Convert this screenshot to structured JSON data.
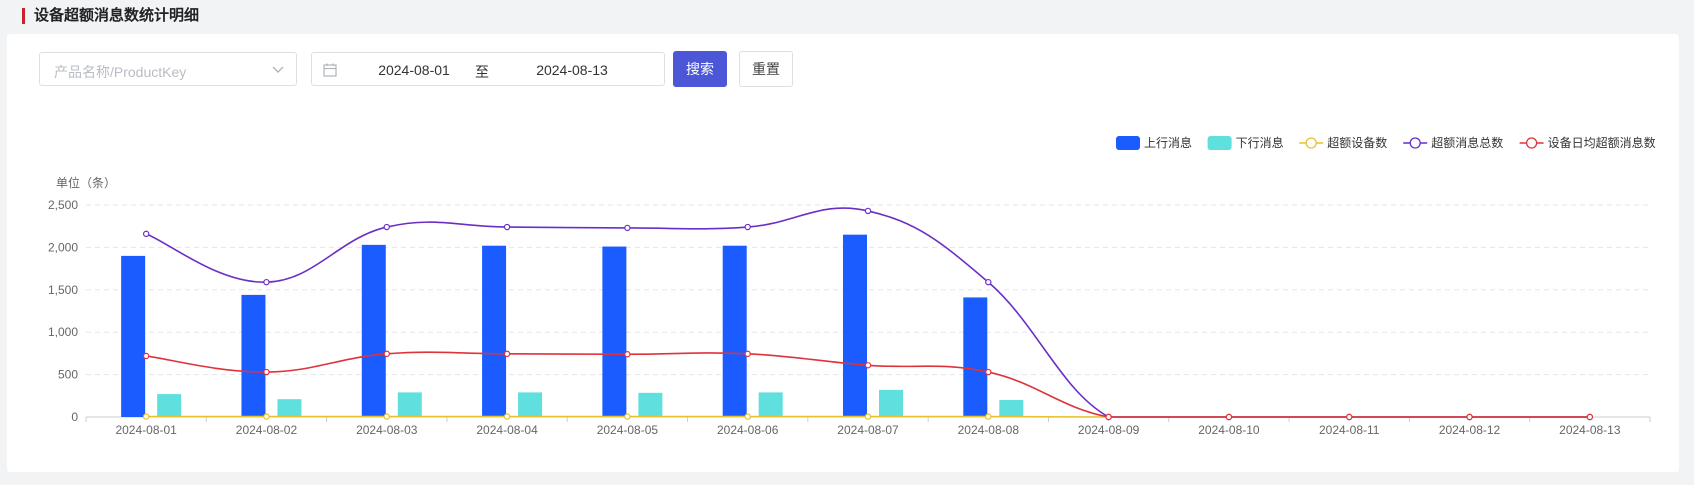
{
  "page": {
    "title": "设备超额消息数统计明细"
  },
  "filters": {
    "product_placeholder": "产品名称/ProductKey",
    "date_start": "2024-08-01",
    "date_separator": "至",
    "date_end": "2024-08-13",
    "search_label": "搜索",
    "reset_label": "重置"
  },
  "colors": {
    "accent_bar": "#c8232c",
    "search_button": "#4b57d6"
  },
  "chart_data": {
    "type": "bar",
    "unit_label": "单位（条）",
    "categories": [
      "2024-08-01",
      "2024-08-02",
      "2024-08-03",
      "2024-08-04",
      "2024-08-05",
      "2024-08-06",
      "2024-08-07",
      "2024-08-08",
      "2024-08-09",
      "2024-08-10",
      "2024-08-11",
      "2024-08-12",
      "2024-08-13"
    ],
    "ylim": [
      0,
      2500
    ],
    "yticks": [
      0,
      500,
      1000,
      1500,
      2000,
      2500
    ],
    "ytick_labels": [
      "0",
      "500",
      "1,000",
      "1,500",
      "2,000",
      "2,500"
    ],
    "grid": true,
    "legend_position": "top-right",
    "series": [
      {
        "name": "上行消息",
        "kind": "bar",
        "color": "#1a5cff",
        "values": [
          1900,
          1440,
          2030,
          2020,
          2010,
          2020,
          2150,
          1410,
          0,
          0,
          0,
          0,
          0
        ]
      },
      {
        "name": "下行消息",
        "kind": "bar",
        "color": "#5fdfde",
        "values": [
          270,
          210,
          290,
          290,
          285,
          290,
          320,
          200,
          0,
          0,
          0,
          0,
          0
        ]
      },
      {
        "name": "超额设备数",
        "kind": "line",
        "color": "#e9c22d",
        "values": [
          5,
          5,
          5,
          5,
          5,
          5,
          5,
          5,
          0,
          0,
          0,
          0,
          0
        ]
      },
      {
        "name": "超额消息总数",
        "kind": "line",
        "color": "#6a2fc5",
        "values": [
          2160,
          1590,
          2240,
          2240,
          2230,
          2240,
          2430,
          1590,
          0,
          0,
          0,
          0,
          0
        ]
      },
      {
        "name": "设备日均超额消息数",
        "kind": "line",
        "color": "#e0323a",
        "values": [
          720,
          530,
          745,
          745,
          740,
          745,
          610,
          530,
          0,
          0,
          0,
          0,
          0
        ]
      }
    ]
  }
}
